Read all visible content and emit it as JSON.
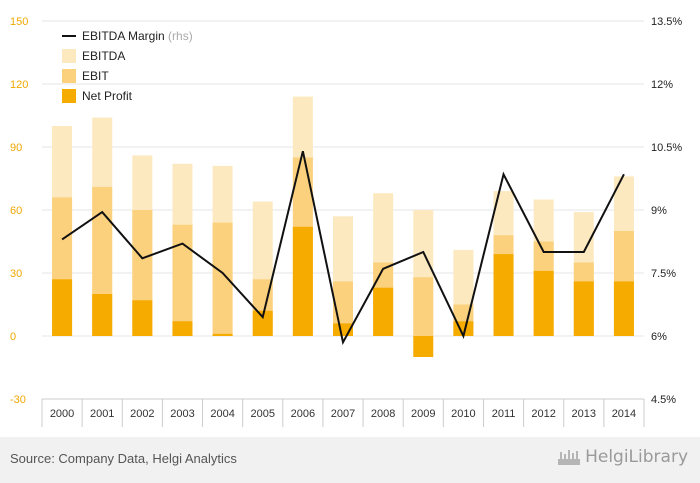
{
  "chart_data": {
    "type": "bar",
    "categories": [
      "2000",
      "2001",
      "2002",
      "2003",
      "2004",
      "2005",
      "2006",
      "2007",
      "2008",
      "2009",
      "2010",
      "2011",
      "2012",
      "2013",
      "2014"
    ],
    "series": [
      {
        "name": "EBITDA",
        "kind": "bar",
        "axis": "left",
        "color": "#fde9bf",
        "values": [
          100,
          104,
          86,
          82,
          81,
          64,
          114,
          57,
          68,
          60,
          41,
          69,
          65,
          59,
          76
        ]
      },
      {
        "name": "EBIT",
        "kind": "bar",
        "axis": "left",
        "color": "#fcd17d",
        "values": [
          66,
          71,
          60,
          53,
          54,
          27,
          85,
          26,
          35,
          28,
          15,
          48,
          45,
          35,
          50
        ]
      },
      {
        "name": "Net Profit",
        "kind": "bar",
        "axis": "left",
        "color": "#f6ab00",
        "values": [
          27,
          20,
          17,
          7,
          1,
          12,
          52,
          6,
          23,
          -10,
          7,
          39,
          31,
          26,
          26
        ]
      },
      {
        "name": "EBITDA Margin",
        "kind": "line",
        "axis": "right",
        "color": "#111111",
        "values": [
          8.3,
          8.95,
          7.85,
          8.2,
          7.5,
          6.45,
          10.4,
          5.85,
          7.6,
          8.0,
          6.0,
          9.85,
          8.0,
          8.0,
          9.85
        ]
      }
    ],
    "legend_rhs_note": "(rhs)",
    "y_left": {
      "min": -30,
      "max": 150,
      "ticks": [
        "150",
        "120",
        "90",
        "60",
        "30",
        "0",
        "-30"
      ]
    },
    "y_right": {
      "min": 4.5,
      "max": 13.5,
      "ticks": [
        "13.5%",
        "12%",
        "10.5%",
        "9%",
        "7.5%",
        "6%",
        "4.5%"
      ]
    },
    "legend_position": "top-left",
    "grid": true,
    "colors": {
      "left_axis_labels": "#f0a800",
      "right_axis_labels": "#222222",
      "x_axis_labels": "#333333",
      "gridline": "#e6e6e6",
      "axis_line": "#cccccc"
    }
  },
  "footer": {
    "source": "Source: Company Data, Helgi Analytics",
    "brand": "HelgiLibrary"
  }
}
